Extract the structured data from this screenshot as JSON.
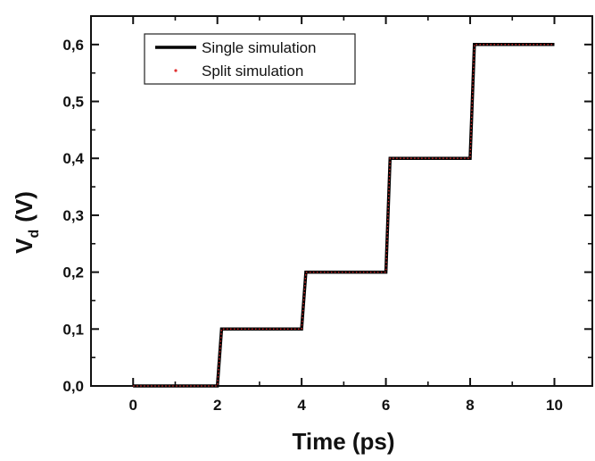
{
  "chart_data": {
    "type": "line",
    "xlabel": "Time (ps)",
    "ylabel_main": "V",
    "ylabel_sub": "d",
    "ylabel_unit": "(V)",
    "xlim": [
      -1.0,
      10.9
    ],
    "ylim": [
      0.0,
      0.65
    ],
    "x_ticks": [
      0,
      2,
      4,
      6,
      8,
      10
    ],
    "x_tick_labels": [
      "0",
      "2",
      "4",
      "6",
      "8",
      "10"
    ],
    "y_ticks": [
      0.0,
      0.1,
      0.2,
      0.3,
      0.4,
      0.5,
      0.6
    ],
    "y_tick_labels": [
      "0,0",
      "0,1",
      "0,2",
      "0,3",
      "0,4",
      "0,5",
      "0,6"
    ],
    "legend_position": "top-left",
    "grid": false,
    "series": [
      {
        "name": "Single simulation",
        "color": "#000000",
        "style": "solid",
        "x": [
          0,
          2.0,
          2.1,
          4.0,
          4.1,
          6.0,
          6.1,
          8.0,
          8.1,
          10.0
        ],
        "y": [
          0.0,
          0.0,
          0.1,
          0.1,
          0.2,
          0.2,
          0.4,
          0.4,
          0.6,
          0.6
        ]
      },
      {
        "name": "Split simulation",
        "color": "#e03030",
        "style": "dotted",
        "x": [
          0,
          2.0,
          2.1,
          4.0,
          4.1,
          6.0,
          6.1,
          8.0,
          8.1,
          10.0
        ],
        "y": [
          0.0,
          0.0,
          0.1,
          0.1,
          0.2,
          0.2,
          0.4,
          0.4,
          0.6,
          0.6
        ]
      }
    ]
  }
}
